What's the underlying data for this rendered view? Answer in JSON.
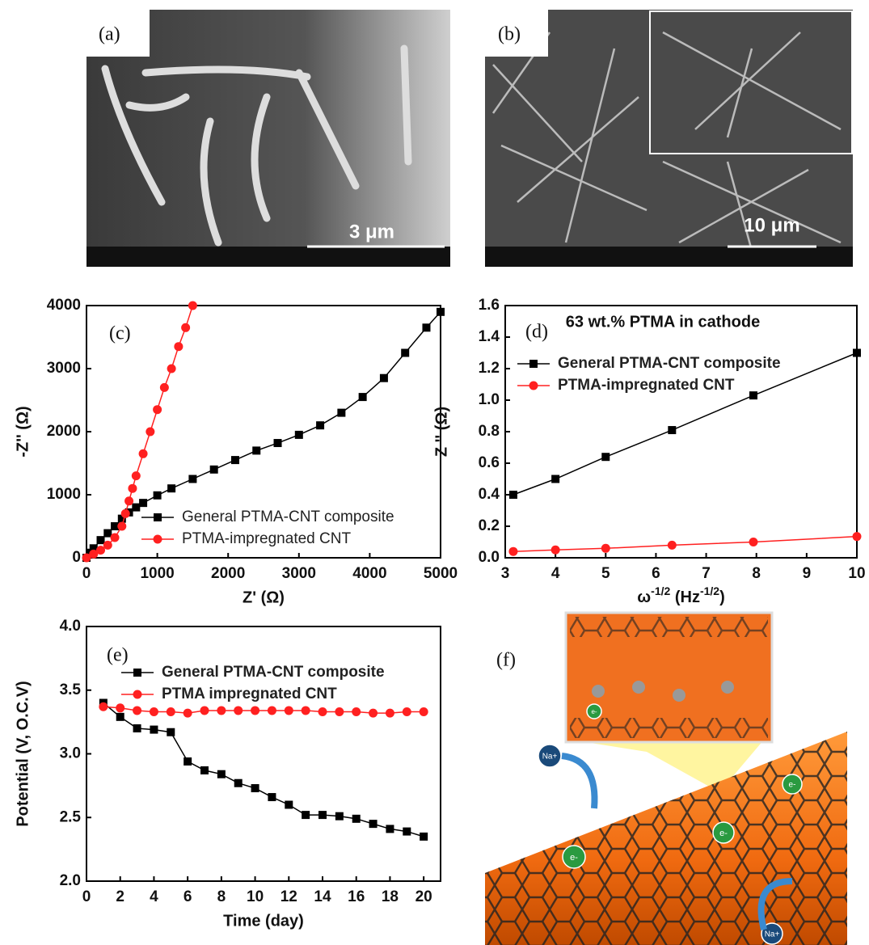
{
  "images": [
    {
      "label": "(a)",
      "scale_bar": "3 μm"
    },
    {
      "label": "(b)",
      "scale_bar": "10 μm"
    },
    {
      "label": "(f)",
      "annotations": [
        "Na+",
        "Na+",
        "e-",
        "e-",
        "e-",
        "e-"
      ]
    }
  ],
  "chart_data": [
    {
      "type": "line",
      "panel_label": "(c)",
      "xlabel": "Z' (Ω)",
      "ylabel": "-Z'' (Ω)",
      "xlim": [
        0,
        5000
      ],
      "ylim": [
        0,
        4000
      ],
      "xticks": [
        0,
        1000,
        2000,
        3000,
        4000,
        5000
      ],
      "yticks": [
        0,
        1000,
        2000,
        3000,
        4000
      ],
      "series": [
        {
          "name": "General PTMA-CNT composite",
          "color": "#000000",
          "marker": "square",
          "x": [
            0,
            50,
            100,
            200,
            300,
            400,
            500,
            600,
            700,
            800,
            1000,
            1200,
            1500,
            1800,
            2100,
            2400,
            2700,
            3000,
            3300,
            3600,
            3900,
            4200,
            4500,
            4800,
            5000
          ],
          "values": [
            0,
            80,
            150,
            280,
            390,
            500,
            620,
            720,
            800,
            870,
            990,
            1100,
            1250,
            1400,
            1550,
            1700,
            1820,
            1950,
            2100,
            2300,
            2550,
            2850,
            3250,
            3650,
            3900
          ]
        },
        {
          "name": "PTMA-impregnated CNT",
          "color": "#ff2020",
          "marker": "circle",
          "x": [
            0,
            100,
            200,
            300,
            400,
            500,
            550,
            600,
            650,
            700,
            800,
            900,
            1000,
            1100,
            1200,
            1300,
            1400,
            1500
          ],
          "values": [
            0,
            60,
            120,
            200,
            320,
            500,
            700,
            900,
            1100,
            1300,
            1650,
            2000,
            2350,
            2700,
            3000,
            3350,
            3650,
            4000
          ]
        }
      ]
    },
    {
      "type": "line",
      "panel_label": "(d)",
      "title": "63 wt.% PTMA in cathode",
      "xlabel": [
        "ω",
        "-1/2",
        " (Hz",
        "-1/2",
        ")"
      ],
      "ylabel": "Z '' (Ω)",
      "xlim": [
        3,
        10
      ],
      "ylim": [
        0,
        1.6
      ],
      "xticks": [
        3,
        4,
        5,
        6,
        7,
        8,
        9,
        10
      ],
      "yticks": [
        {
          "value": 0,
          "label": "0.0"
        },
        0.2,
        0.4,
        0.6,
        0.8,
        {
          "value": 1,
          "label": "1.0"
        },
        1.2,
        1.4,
        1.6
      ],
      "series": [
        {
          "name": "General PTMA-CNT composite",
          "color": "#000000",
          "marker": "square",
          "x": [
            3.16,
            4.0,
            5.0,
            6.32,
            7.94,
            10
          ],
          "values": [
            0.4,
            0.5,
            0.64,
            0.81,
            1.03,
            1.3
          ]
        },
        {
          "name": "PTMA-impregnated CNT",
          "color": "#ff2020",
          "marker": "circle",
          "x": [
            3.16,
            4.0,
            5.0,
            6.32,
            7.94,
            10
          ],
          "values": [
            0.04,
            0.05,
            0.06,
            0.08,
            0.1,
            0.135
          ]
        }
      ]
    },
    {
      "type": "line",
      "panel_label": "(e)",
      "xlabel": "Time (day)",
      "ylabel": "Potential (V, O.C.V)",
      "xlim": [
        0,
        21
      ],
      "ylim": [
        2,
        4
      ],
      "xticks": [
        0,
        2,
        4,
        6,
        8,
        10,
        12,
        14,
        16,
        18,
        20
      ],
      "yticks": [
        {
          "value": 2,
          "label": "2.0"
        },
        2.5,
        {
          "value": 3,
          "label": "3.0"
        },
        3.5,
        {
          "value": 4,
          "label": "4.0"
        }
      ],
      "x": [
        1,
        2,
        3,
        4,
        5,
        6,
        7,
        8,
        9,
        10,
        11,
        12,
        13,
        14,
        15,
        16,
        17,
        18,
        19,
        20
      ],
      "series": [
        {
          "name": "General PTMA-CNT composite",
          "color": "#000000",
          "marker": "square",
          "values": [
            3.4,
            3.29,
            3.2,
            3.19,
            3.17,
            2.94,
            2.87,
            2.84,
            2.77,
            2.73,
            2.66,
            2.6,
            2.52,
            2.52,
            2.51,
            2.49,
            2.45,
            2.41,
            2.39,
            2.35
          ]
        },
        {
          "name": "PTMA impregnated CNT",
          "color": "#ff2020",
          "marker": "circle",
          "values": [
            3.37,
            3.36,
            3.34,
            3.33,
            3.33,
            3.32,
            3.34,
            3.34,
            3.34,
            3.34,
            3.34,
            3.34,
            3.34,
            3.33,
            3.33,
            3.33,
            3.32,
            3.32,
            3.33,
            3.33
          ]
        }
      ]
    }
  ]
}
